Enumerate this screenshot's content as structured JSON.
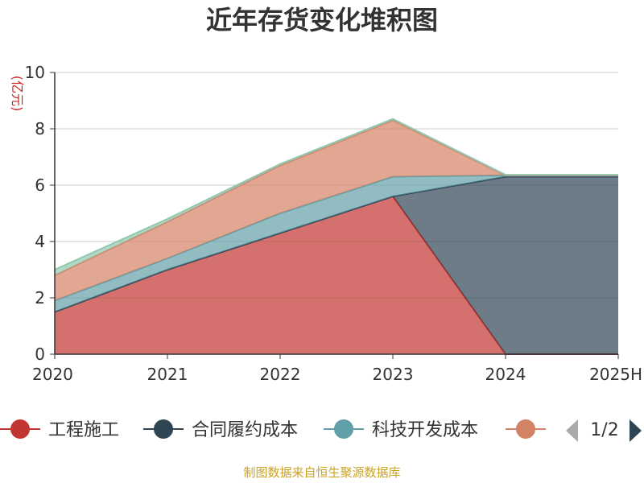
{
  "chart_data": {
    "type": "area",
    "stacked": true,
    "title": "近年存货变化堆积图",
    "unit_label": "(亿元)",
    "categories": [
      "2020",
      "2021",
      "2022",
      "2023",
      "2024",
      "2025H"
    ],
    "ylim": [
      0,
      10
    ],
    "yticks": [
      0,
      2,
      4,
      6,
      8,
      10
    ],
    "grid": true,
    "series": [
      {
        "name": "工程施工",
        "color": "#c23531",
        "values": [
          1.5,
          3.0,
          4.3,
          5.6,
          0,
          0
        ]
      },
      {
        "name": "合同履约成本",
        "color": "#2f4554",
        "values": [
          0,
          0,
          0,
          0,
          6.3,
          6.3
        ]
      },
      {
        "name": "科技开发成本",
        "color": "#61a0a8",
        "values": [
          0.4,
          0.4,
          0.7,
          0.7,
          0.05,
          0.05
        ]
      },
      {
        "name": "",
        "color": "#d48265",
        "values": [
          0.9,
          1.3,
          1.7,
          2.0,
          0,
          0
        ]
      },
      {
        "name": "",
        "color": "#91c7ae",
        "values": [
          0.2,
          0.1,
          0.05,
          0.05,
          0.02,
          0.02
        ]
      }
    ],
    "legend": {
      "position": "bottom",
      "page": "1/2"
    }
  },
  "source_note": "制图数据来自恒生聚源数据库"
}
